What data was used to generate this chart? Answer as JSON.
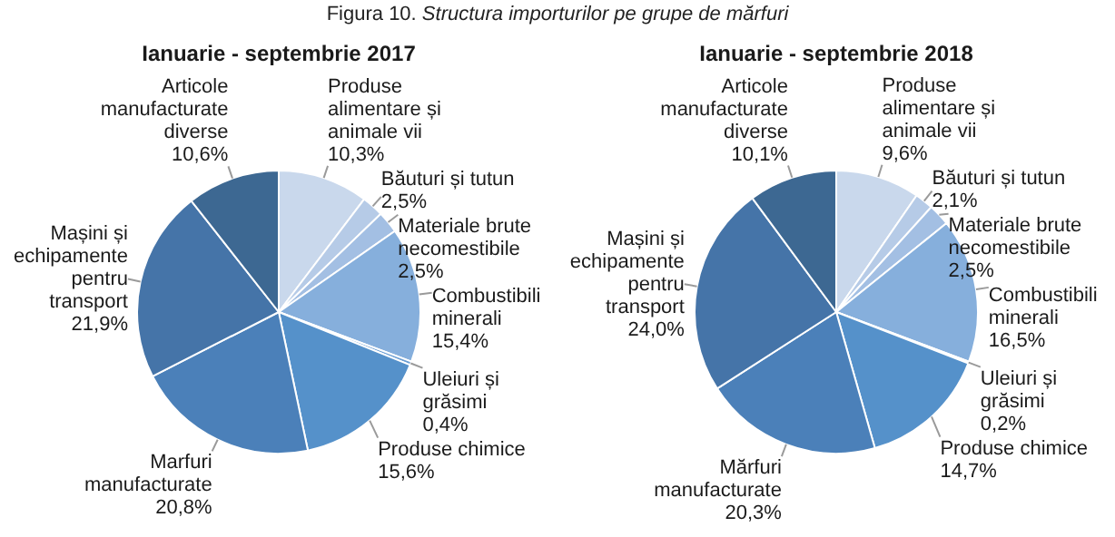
{
  "chart_data": [
    {
      "type": "pie",
      "title": "Ianuarie - septembrie 2017",
      "annotations": [
        "Figura 10. Structura importurilor pe grupe de mărfuri"
      ],
      "categories": [
        "Produse alimentare și animale vii",
        "Băuturi și tutun",
        "Materiale brute necomestibile",
        "Combustibili minerali",
        "Uleiuri și grăsimi",
        "Produse chimice",
        "Marfuri manufacturate",
        "Mașini și echipamente pentru transport",
        "Articole manufacturate diverse"
      ],
      "values": [
        10.3,
        2.5,
        2.5,
        15.4,
        0.4,
        15.6,
        20.8,
        21.9,
        10.6
      ],
      "value_labels": [
        "10,3%",
        "2,5%",
        "2,5%",
        "15,4%",
        "0,4%",
        "15,6%",
        "20,8%",
        "21,9%",
        "10,6%"
      ],
      "colors": [
        "#c9d8ec",
        "#b6cbe7",
        "#a3bfe3",
        "#86afdc",
        "#6c9fd4",
        "#5591ca",
        "#4b80b9",
        "#4574a8",
        "#3d6892"
      ],
      "legend": false
    },
    {
      "type": "pie",
      "title": "Ianuarie - septembrie 2018",
      "categories": [
        "Produse alimentare și animale vii",
        "Băuturi și tutun",
        "Materiale brute necomestibile",
        "Combustibili minerali",
        "Uleiuri și grăsimi",
        "Produse chimice",
        "Mărfuri manufacturate",
        "Mașini și echipamente pentru transport",
        "Articole manufacturate diverse"
      ],
      "values": [
        9.6,
        2.1,
        2.5,
        16.5,
        0.2,
        14.7,
        20.3,
        24.0,
        10.1
      ],
      "value_labels": [
        "9,6%",
        "2,1%",
        "2,5%",
        "16,5%",
        "0,2%",
        "14,7%",
        "20,3%",
        "24,0%",
        "10,1%"
      ],
      "colors": [
        "#c9d8ec",
        "#b6cbe7",
        "#a3bfe3",
        "#86afdc",
        "#6c9fd4",
        "#5591ca",
        "#4b80b9",
        "#4574a8",
        "#3d6892"
      ],
      "legend": false
    }
  ]
}
